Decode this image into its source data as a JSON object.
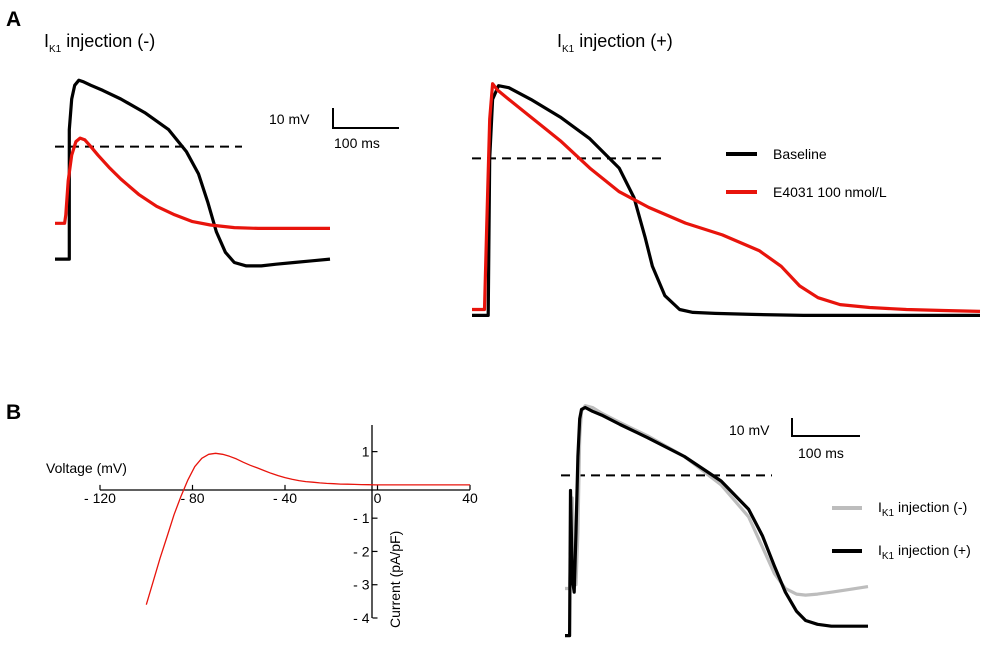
{
  "panels": {
    "a": "A",
    "b": "B"
  },
  "colors": {
    "baseline": "#000000",
    "e4031": "#e8140c",
    "ik1_neg": "#bdbdbd",
    "ik1_pos": "#000000",
    "iv_curve": "#e8140c"
  },
  "chart_data": [
    {
      "id": "A-left",
      "type": "line",
      "title_prefix": "I",
      "title_sub": "K1",
      "title_suffix": " injection (-)",
      "scale_bar": {
        "voltage_label": "10 mV",
        "time_label": "100 ms",
        "voltage_mV": 10,
        "time_ms": 100
      },
      "xlim": [
        0,
        460
      ],
      "ylim": [
        -90,
        45
      ],
      "dashed_threshold_mV": 0,
      "series": [
        {
          "name": "Baseline",
          "color": "#000000",
          "x": [
            0,
            24,
            24,
            28,
            33,
            40,
            48,
            60,
            80,
            110,
            150,
            190,
            220,
            240,
            256,
            270,
            285,
            300,
            320,
            345,
            370,
            400,
            430,
            460
          ],
          "y": [
            -66,
            -66,
            10,
            28,
            36,
            39,
            38,
            36,
            33,
            28,
            20,
            10,
            -3,
            -16,
            -33,
            -50,
            -62,
            -68,
            -70,
            -70,
            -69,
            -68,
            -67,
            -66
          ]
        },
        {
          "name": "E4031 100 nmol/L",
          "color": "#e8140c",
          "x": [
            0,
            16,
            18,
            22,
            28,
            35,
            42,
            50,
            60,
            72,
            90,
            110,
            140,
            170,
            200,
            230,
            260,
            300,
            340,
            380,
            420,
            460
          ],
          "y": [
            -45,
            -45,
            -40,
            -20,
            -5,
            3,
            5,
            4,
            0,
            -5,
            -12,
            -19,
            -28,
            -35,
            -40,
            -44,
            -46,
            -47.5,
            -48,
            -48,
            -48,
            -48
          ]
        }
      ]
    },
    {
      "id": "A-right",
      "type": "line",
      "title_prefix": "I",
      "title_sub": "K1",
      "title_suffix": " injection (+)",
      "legend": [
        {
          "name": "Baseline",
          "color": "#000000"
        },
        {
          "name": "E4031 100 nmol/L",
          "color": "#e8140c"
        }
      ],
      "xlim": [
        0,
        690
      ],
      "ylim": [
        -90,
        45
      ],
      "dashed_threshold_mV": 0,
      "series": [
        {
          "name": "Baseline",
          "color": "#000000",
          "x": [
            0,
            22,
            24,
            28,
            36,
            50,
            80,
            120,
            160,
            200,
            220,
            235,
            245,
            262,
            282,
            300,
            330,
            380,
            450,
            550,
            690
          ],
          "y": [
            -80,
            -80,
            0,
            30,
            37,
            36,
            30,
            21,
            10,
            -5,
            -20,
            -40,
            -55,
            -70,
            -77,
            -78.5,
            -79,
            -79.5,
            -80,
            -80,
            -80
          ]
        },
        {
          "name": "E4031 100 nmol/L",
          "color": "#e8140c",
          "x": [
            0,
            17,
            20,
            24,
            28,
            34,
            50,
            80,
            120,
            160,
            200,
            240,
            290,
            340,
            390,
            420,
            445,
            470,
            500,
            540,
            590,
            640,
            690
          ],
          "y": [
            -77,
            -77,
            -35,
            20,
            38,
            35,
            30,
            21,
            9,
            -5,
            -17,
            -25,
            -33,
            -39,
            -47,
            -55,
            -65,
            -71,
            -74.5,
            -76,
            -77,
            -77.5,
            -78
          ]
        }
      ]
    },
    {
      "id": "B-left",
      "type": "line",
      "title": "",
      "xlabel": "Voltage (mV)",
      "ylabel": "Current (pA/pF)",
      "xlim": [
        -120,
        40
      ],
      "ylim": [
        -4,
        1.8
      ],
      "xticks": [
        -120,
        -80,
        -40,
        0,
        40
      ],
      "xtick_labels": [
        "- 120",
        "- 80",
        "- 40",
        "0",
        "40"
      ],
      "yticks": [
        1,
        -1,
        -2,
        -3,
        -4
      ],
      "ytick_labels": [
        "1",
        "- 1",
        "- 2",
        "- 3",
        "- 4"
      ],
      "series": [
        {
          "name": "",
          "color": "#e8140c",
          "x": [
            -100,
            -97,
            -94,
            -91,
            -88,
            -85,
            -82,
            -79,
            -76,
            -73,
            -70,
            -67,
            -64,
            -61,
            -58,
            -55,
            -52,
            -49,
            -46,
            -43,
            -40,
            -37,
            -34,
            -31,
            -28,
            -25,
            -22,
            -19,
            -16,
            -13,
            -10,
            -7,
            -4,
            -1,
            0,
            5,
            10,
            20,
            30,
            40
          ],
          "y": [
            -3.6,
            -2.9,
            -2.2,
            -1.55,
            -0.9,
            -0.35,
            0.15,
            0.55,
            0.8,
            0.92,
            0.95,
            0.92,
            0.86,
            0.78,
            0.68,
            0.59,
            0.51,
            0.43,
            0.35,
            0.28,
            0.22,
            0.17,
            0.13,
            0.1,
            0.08,
            0.06,
            0.045,
            0.035,
            0.025,
            0.02,
            0.015,
            0.01,
            0.005,
            0.0,
            0.0,
            0.0,
            0.0,
            0.0,
            0.0,
            0.0
          ]
        }
      ]
    },
    {
      "id": "B-right",
      "type": "line",
      "scale_bar": {
        "voltage_label": "10 mV",
        "time_label": "100 ms",
        "voltage_mV": 10,
        "time_ms": 100
      },
      "legend": [
        {
          "prefix": "I",
          "sub": "K1",
          "suffix": " injection (-)",
          "color": "#bdbdbd"
        },
        {
          "prefix": "I",
          "sub": "K1",
          "suffix": " injection (+)",
          "color": "#000000"
        }
      ],
      "xlim": [
        0,
        330
      ],
      "ylim": [
        -90,
        40
      ],
      "dashed_threshold_mV": 0,
      "series": [
        {
          "name": "IK1 injection (-)",
          "color": "#bdbdbd",
          "x": [
            0,
            5,
            8,
            10,
            12,
            14,
            16,
            18,
            22,
            30,
            40,
            60,
            90,
            130,
            170,
            200,
            215,
            228,
            240,
            252,
            262,
            275,
            290,
            310,
            330
          ],
          "y": [
            -60,
            -60,
            -12,
            -50,
            -58,
            -30,
            20,
            34,
            37,
            36,
            33,
            28,
            21,
            10,
            -5,
            -22,
            -38,
            -52,
            -60,
            -63,
            -63.5,
            -63,
            -62,
            -60.5,
            -59
          ]
        },
        {
          "name": "IK1 injection (+)",
          "color": "#000000",
          "x": [
            0,
            5,
            6,
            8,
            10,
            12,
            14,
            16,
            18,
            22,
            30,
            40,
            60,
            90,
            130,
            170,
            200,
            215,
            228,
            240,
            252,
            262,
            275,
            290,
            310,
            330
          ],
          "y": [
            -85,
            -85,
            -8,
            -55,
            -62,
            -30,
            10,
            30,
            35,
            36,
            34,
            32,
            27,
            20,
            10,
            -3,
            -18,
            -32,
            -48,
            -62,
            -72,
            -77,
            -79,
            -80,
            -80,
            -80
          ]
        }
      ]
    }
  ]
}
